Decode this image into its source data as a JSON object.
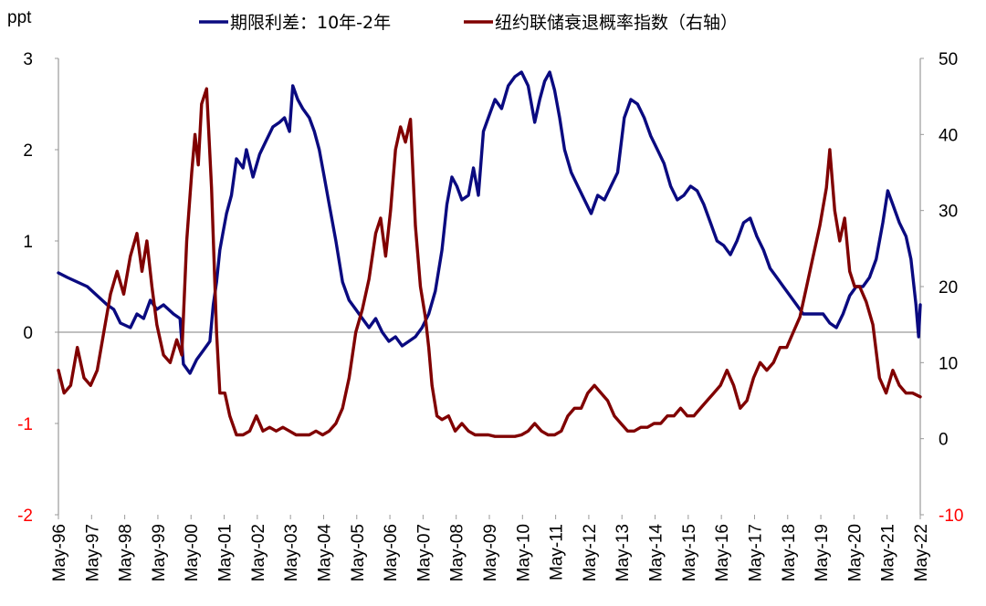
{
  "chart_data": {
    "type": "line",
    "title": "",
    "left_axis": {
      "unit_label": "ppt",
      "ticks": [
        3,
        2,
        1,
        0,
        -1,
        -2
      ],
      "tick_labels": [
        "3",
        "2",
        "1",
        "0",
        "-1",
        "-2"
      ],
      "range": [
        -2,
        3
      ],
      "negative_label_color": "#ff0000"
    },
    "right_axis": {
      "ticks": [
        50,
        40,
        30,
        20,
        10,
        0,
        -10
      ],
      "tick_labels": [
        "50",
        "40",
        "30",
        "20",
        "10",
        "0",
        "-10"
      ],
      "range": [
        -10,
        50
      ],
      "negative_label_color": "#ff0000"
    },
    "x_axis": {
      "range": [
        1996.33,
        2022.33
      ],
      "tick_labels": [
        "May-96",
        "May-97",
        "May-98",
        "May-99",
        "May-00",
        "May-01",
        "May-02",
        "May-03",
        "May-04",
        "May-05",
        "May-06",
        "May-07",
        "May-08",
        "May-09",
        "May-10",
        "May-11",
        "May-12",
        "May-13",
        "May-14",
        "May-15",
        "May-16",
        "May-17",
        "May-18",
        "May-19",
        "May-20",
        "May-21",
        "May-22"
      ]
    },
    "legend_placement": "top",
    "series": [
      {
        "name": "期限利差：10年-2年",
        "axis": "left",
        "color": "#0a0a80",
        "points": [
          [
            1996.33,
            0.65
          ],
          [
            1996.6,
            0.6
          ],
          [
            1996.9,
            0.55
          ],
          [
            1997.2,
            0.5
          ],
          [
            1997.5,
            0.4
          ],
          [
            1997.8,
            0.3
          ],
          [
            1998.0,
            0.25
          ],
          [
            1998.2,
            0.1
          ],
          [
            1998.5,
            0.05
          ],
          [
            1998.7,
            0.2
          ],
          [
            1998.9,
            0.15
          ],
          [
            1999.1,
            0.35
          ],
          [
            1999.3,
            0.25
          ],
          [
            1999.5,
            0.3
          ],
          [
            1999.8,
            0.2
          ],
          [
            2000.0,
            0.15
          ],
          [
            2000.1,
            -0.35
          ],
          [
            2000.3,
            -0.45
          ],
          [
            2000.5,
            -0.3
          ],
          [
            2000.7,
            -0.2
          ],
          [
            2000.9,
            -0.1
          ],
          [
            2001.0,
            0.3
          ],
          [
            2001.1,
            0.55
          ],
          [
            2001.2,
            0.9
          ],
          [
            2001.3,
            1.1
          ],
          [
            2001.4,
            1.3
          ],
          [
            2001.55,
            1.5
          ],
          [
            2001.7,
            1.9
          ],
          [
            2001.9,
            1.8
          ],
          [
            2002.0,
            2.0
          ],
          [
            2002.2,
            1.7
          ],
          [
            2002.4,
            1.95
          ],
          [
            2002.6,
            2.1
          ],
          [
            2002.8,
            2.25
          ],
          [
            2003.0,
            2.3
          ],
          [
            2003.15,
            2.35
          ],
          [
            2003.3,
            2.2
          ],
          [
            2003.4,
            2.7
          ],
          [
            2003.55,
            2.55
          ],
          [
            2003.7,
            2.45
          ],
          [
            2003.9,
            2.35
          ],
          [
            2004.05,
            2.2
          ],
          [
            2004.2,
            2.0
          ],
          [
            2004.35,
            1.7
          ],
          [
            2004.5,
            1.4
          ],
          [
            2004.7,
            1.0
          ],
          [
            2004.9,
            0.55
          ],
          [
            2005.1,
            0.35
          ],
          [
            2005.3,
            0.25
          ],
          [
            2005.5,
            0.15
          ],
          [
            2005.7,
            0.05
          ],
          [
            2005.9,
            0.15
          ],
          [
            2006.1,
            0.0
          ],
          [
            2006.3,
            -0.1
          ],
          [
            2006.5,
            -0.05
          ],
          [
            2006.7,
            -0.15
          ],
          [
            2006.9,
            -0.1
          ],
          [
            2007.1,
            -0.05
          ],
          [
            2007.3,
            0.05
          ],
          [
            2007.5,
            0.2
          ],
          [
            2007.7,
            0.45
          ],
          [
            2007.9,
            0.9
          ],
          [
            2008.05,
            1.4
          ],
          [
            2008.2,
            1.7
          ],
          [
            2008.35,
            1.6
          ],
          [
            2008.5,
            1.45
          ],
          [
            2008.7,
            1.5
          ],
          [
            2008.85,
            1.8
          ],
          [
            2009.0,
            1.5
          ],
          [
            2009.15,
            2.2
          ],
          [
            2009.3,
            2.35
          ],
          [
            2009.5,
            2.55
          ],
          [
            2009.7,
            2.45
          ],
          [
            2009.9,
            2.7
          ],
          [
            2010.1,
            2.8
          ],
          [
            2010.3,
            2.85
          ],
          [
            2010.5,
            2.7
          ],
          [
            2010.7,
            2.3
          ],
          [
            2010.85,
            2.55
          ],
          [
            2011.0,
            2.75
          ],
          [
            2011.15,
            2.85
          ],
          [
            2011.3,
            2.65
          ],
          [
            2011.45,
            2.35
          ],
          [
            2011.6,
            2.0
          ],
          [
            2011.8,
            1.75
          ],
          [
            2012.0,
            1.6
          ],
          [
            2012.2,
            1.45
          ],
          [
            2012.4,
            1.3
          ],
          [
            2012.6,
            1.5
          ],
          [
            2012.8,
            1.45
          ],
          [
            2013.0,
            1.6
          ],
          [
            2013.2,
            1.75
          ],
          [
            2013.4,
            2.35
          ],
          [
            2013.6,
            2.55
          ],
          [
            2013.8,
            2.5
          ],
          [
            2014.0,
            2.35
          ],
          [
            2014.2,
            2.15
          ],
          [
            2014.4,
            2.0
          ],
          [
            2014.6,
            1.85
          ],
          [
            2014.8,
            1.6
          ],
          [
            2015.0,
            1.45
          ],
          [
            2015.2,
            1.5
          ],
          [
            2015.4,
            1.6
          ],
          [
            2015.6,
            1.55
          ],
          [
            2015.8,
            1.4
          ],
          [
            2016.0,
            1.2
          ],
          [
            2016.2,
            1.0
          ],
          [
            2016.4,
            0.95
          ],
          [
            2016.6,
            0.85
          ],
          [
            2016.8,
            1.0
          ],
          [
            2017.0,
            1.2
          ],
          [
            2017.2,
            1.25
          ],
          [
            2017.4,
            1.05
          ],
          [
            2017.6,
            0.9
          ],
          [
            2017.8,
            0.7
          ],
          [
            2018.0,
            0.6
          ],
          [
            2018.2,
            0.5
          ],
          [
            2018.4,
            0.4
          ],
          [
            2018.6,
            0.3
          ],
          [
            2018.8,
            0.2
          ],
          [
            2019.0,
            0.2
          ],
          [
            2019.2,
            0.2
          ],
          [
            2019.4,
            0.2
          ],
          [
            2019.6,
            0.1
          ],
          [
            2019.8,
            0.05
          ],
          [
            2020.0,
            0.2
          ],
          [
            2020.2,
            0.4
          ],
          [
            2020.4,
            0.5
          ],
          [
            2020.6,
            0.5
          ],
          [
            2020.8,
            0.6
          ],
          [
            2021.0,
            0.8
          ],
          [
            2021.2,
            1.2
          ],
          [
            2021.35,
            1.55
          ],
          [
            2021.5,
            1.4
          ],
          [
            2021.7,
            1.2
          ],
          [
            2021.9,
            1.05
          ],
          [
            2022.05,
            0.8
          ],
          [
            2022.2,
            0.3
          ],
          [
            2022.28,
            -0.05
          ],
          [
            2022.33,
            0.3
          ]
        ]
      },
      {
        "name": "纽约联储衰退概率指数（右轴）",
        "axis": "right",
        "color": "#800000",
        "points": [
          [
            1996.33,
            9
          ],
          [
            1996.5,
            6
          ],
          [
            1996.7,
            7
          ],
          [
            1996.9,
            12
          ],
          [
            1997.1,
            8
          ],
          [
            1997.3,
            7
          ],
          [
            1997.5,
            9
          ],
          [
            1997.7,
            14
          ],
          [
            1997.9,
            19
          ],
          [
            1998.1,
            22
          ],
          [
            1998.3,
            19
          ],
          [
            1998.5,
            24
          ],
          [
            1998.7,
            27
          ],
          [
            1998.85,
            22
          ],
          [
            1999.0,
            26
          ],
          [
            1999.15,
            20
          ],
          [
            1999.3,
            15
          ],
          [
            1999.5,
            11
          ],
          [
            1999.7,
            10
          ],
          [
            1999.9,
            13
          ],
          [
            2000.05,
            11
          ],
          [
            2000.2,
            26
          ],
          [
            2000.35,
            35
          ],
          [
            2000.45,
            40
          ],
          [
            2000.55,
            36
          ],
          [
            2000.65,
            44
          ],
          [
            2000.8,
            46
          ],
          [
            2000.95,
            33
          ],
          [
            2001.1,
            14
          ],
          [
            2001.2,
            6
          ],
          [
            2001.35,
            6
          ],
          [
            2001.5,
            3
          ],
          [
            2001.7,
            0.5
          ],
          [
            2001.9,
            0.5
          ],
          [
            2002.1,
            1
          ],
          [
            2002.3,
            3
          ],
          [
            2002.5,
            1
          ],
          [
            2002.7,
            1.5
          ],
          [
            2002.9,
            1
          ],
          [
            2003.1,
            1.5
          ],
          [
            2003.3,
            1
          ],
          [
            2003.5,
            0.5
          ],
          [
            2003.7,
            0.5
          ],
          [
            2003.9,
            0.5
          ],
          [
            2004.1,
            1
          ],
          [
            2004.3,
            0.5
          ],
          [
            2004.5,
            1
          ],
          [
            2004.7,
            2
          ],
          [
            2004.9,
            4
          ],
          [
            2005.1,
            8
          ],
          [
            2005.3,
            14
          ],
          [
            2005.5,
            17
          ],
          [
            2005.7,
            21
          ],
          [
            2005.9,
            27
          ],
          [
            2006.05,
            29
          ],
          [
            2006.2,
            24
          ],
          [
            2006.35,
            30
          ],
          [
            2006.5,
            38
          ],
          [
            2006.65,
            41
          ],
          [
            2006.8,
            39
          ],
          [
            2006.95,
            42
          ],
          [
            2007.1,
            28
          ],
          [
            2007.25,
            20
          ],
          [
            2007.4,
            16
          ],
          [
            2007.5,
            12
          ],
          [
            2007.6,
            7
          ],
          [
            2007.75,
            3
          ],
          [
            2007.9,
            2.5
          ],
          [
            2008.1,
            3
          ],
          [
            2008.3,
            1
          ],
          [
            2008.5,
            2
          ],
          [
            2008.7,
            1
          ],
          [
            2008.9,
            0.5
          ],
          [
            2009.1,
            0.5
          ],
          [
            2009.3,
            0.5
          ],
          [
            2009.5,
            0.3
          ],
          [
            2009.7,
            0.3
          ],
          [
            2009.9,
            0.3
          ],
          [
            2010.1,
            0.3
          ],
          [
            2010.3,
            0.5
          ],
          [
            2010.5,
            1
          ],
          [
            2010.7,
            2
          ],
          [
            2010.9,
            1
          ],
          [
            2011.1,
            0.5
          ],
          [
            2011.3,
            0.5
          ],
          [
            2011.5,
            1
          ],
          [
            2011.7,
            3
          ],
          [
            2011.9,
            4
          ],
          [
            2012.1,
            4
          ],
          [
            2012.3,
            6
          ],
          [
            2012.5,
            7
          ],
          [
            2012.7,
            6
          ],
          [
            2012.9,
            5
          ],
          [
            2013.1,
            3
          ],
          [
            2013.3,
            2
          ],
          [
            2013.5,
            1
          ],
          [
            2013.7,
            1
          ],
          [
            2013.9,
            1.5
          ],
          [
            2014.1,
            1.5
          ],
          [
            2014.3,
            2
          ],
          [
            2014.5,
            2
          ],
          [
            2014.7,
            3
          ],
          [
            2014.9,
            3
          ],
          [
            2015.1,
            4
          ],
          [
            2015.3,
            3
          ],
          [
            2015.5,
            3
          ],
          [
            2015.7,
            4
          ],
          [
            2015.9,
            5
          ],
          [
            2016.1,
            6
          ],
          [
            2016.3,
            7
          ],
          [
            2016.5,
            9
          ],
          [
            2016.7,
            7
          ],
          [
            2016.9,
            4
          ],
          [
            2017.1,
            5
          ],
          [
            2017.3,
            8
          ],
          [
            2017.5,
            10
          ],
          [
            2017.7,
            9
          ],
          [
            2017.9,
            10
          ],
          [
            2018.1,
            12
          ],
          [
            2018.3,
            12
          ],
          [
            2018.5,
            14
          ],
          [
            2018.7,
            16
          ],
          [
            2018.9,
            20
          ],
          [
            2019.1,
            24
          ],
          [
            2019.3,
            28
          ],
          [
            2019.5,
            33
          ],
          [
            2019.6,
            38
          ],
          [
            2019.75,
            30
          ],
          [
            2019.9,
            26
          ],
          [
            2020.05,
            29
          ],
          [
            2020.2,
            22
          ],
          [
            2020.35,
            20
          ],
          [
            2020.5,
            20
          ],
          [
            2020.7,
            18
          ],
          [
            2020.9,
            15
          ],
          [
            2021.1,
            8
          ],
          [
            2021.3,
            6
          ],
          [
            2021.5,
            9
          ],
          [
            2021.7,
            7
          ],
          [
            2021.9,
            6
          ],
          [
            2022.1,
            6
          ],
          [
            2022.33,
            5.5
          ]
        ]
      }
    ]
  }
}
